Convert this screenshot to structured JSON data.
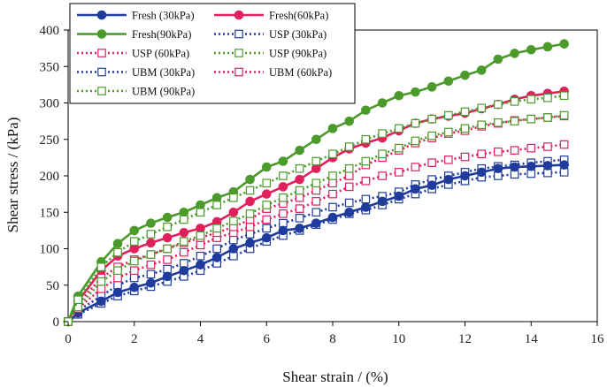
{
  "chart_data": {
    "type": "line",
    "title": "",
    "xlabel": "Shear strain / (%)",
    "ylabel": "Shear stress / (kPa)",
    "xlim": [
      0,
      16
    ],
    "ylim": [
      0,
      400
    ],
    "xticks": [
      0,
      2,
      4,
      6,
      8,
      10,
      12,
      14,
      16
    ],
    "yticks": [
      0,
      50,
      100,
      150,
      200,
      250,
      300,
      350,
      400
    ],
    "grid": false,
    "legend_position": "top-left",
    "series": [
      {
        "name": "Fresh (30kPa)",
        "color": "#1f3b9c",
        "marker": "filled-circle",
        "line": "solid",
        "x": [
          0,
          0.3,
          1,
          1.5,
          2,
          2.5,
          3,
          3.5,
          4,
          4.5,
          5,
          5.5,
          6,
          6.5,
          7,
          7.5,
          8,
          8.5,
          9,
          9.5,
          10,
          10.5,
          11,
          11.5,
          12,
          12.5,
          13,
          13.5,
          14,
          14.5,
          15
        ],
        "y": [
          0,
          12,
          28,
          40,
          47,
          53,
          62,
          70,
          78,
          88,
          100,
          108,
          115,
          125,
          128,
          135,
          143,
          150,
          157,
          165,
          172,
          182,
          187,
          195,
          200,
          205,
          210,
          212,
          213,
          214,
          215
        ]
      },
      {
        "name": "Fresh(60kPa)",
        "color": "#e0205a",
        "marker": "filled-circle",
        "line": "solid",
        "x": [
          0,
          0.3,
          1,
          1.5,
          2,
          2.5,
          3,
          3.5,
          4,
          4.5,
          5,
          5.5,
          6,
          6.5,
          7,
          7.5,
          8,
          8.5,
          9,
          9.5,
          10,
          10.5,
          11,
          11.5,
          12,
          12.5,
          13,
          13.5,
          14,
          14.5,
          15
        ],
        "y": [
          0,
          28,
          70,
          90,
          100,
          108,
          115,
          122,
          128,
          137,
          150,
          165,
          175,
          185,
          195,
          210,
          225,
          237,
          245,
          252,
          262,
          272,
          278,
          282,
          286,
          292,
          298,
          305,
          310,
          313,
          316
        ]
      },
      {
        "name": "Fresh(90kPa)",
        "color": "#4b9a2b",
        "marker": "filled-circle",
        "line": "solid",
        "x": [
          0,
          0.3,
          1,
          1.5,
          2,
          2.5,
          3,
          3.5,
          4,
          4.5,
          5,
          5.5,
          6,
          6.5,
          7,
          7.5,
          8,
          8.5,
          9,
          9.5,
          10,
          10.5,
          11,
          11.5,
          12,
          12.5,
          13,
          13.5,
          14,
          14.5,
          15
        ],
        "y": [
          0,
          35,
          82,
          107,
          125,
          135,
          143,
          150,
          160,
          170,
          178,
          195,
          212,
          220,
          235,
          250,
          265,
          275,
          290,
          300,
          310,
          315,
          322,
          330,
          338,
          345,
          360,
          368,
          373,
          377,
          381
        ]
      },
      {
        "name": "USP (30kPa)",
        "color": "#1f3b9c",
        "marker": "open-square",
        "line": "dotted",
        "x": [
          0,
          0.3,
          1,
          1.5,
          2,
          2.5,
          3,
          3.5,
          4,
          4.5,
          5,
          5.5,
          6,
          6.5,
          7,
          7.5,
          8,
          8.5,
          9,
          9.5,
          10,
          10.5,
          11,
          11.5,
          12,
          12.5,
          13,
          13.5,
          14,
          14.5,
          15
        ],
        "y": [
          0,
          15,
          35,
          50,
          60,
          65,
          72,
          80,
          90,
          100,
          112,
          120,
          128,
          135,
          142,
          150,
          157,
          163,
          168,
          172,
          178,
          188,
          195,
          200,
          205,
          210,
          213,
          215,
          218,
          220,
          222
        ]
      },
      {
        "name": "USP (60kPa)",
        "color": "#e0205a",
        "marker": "open-square",
        "line": "dotted",
        "x": [
          0,
          0.3,
          1,
          1.5,
          2,
          2.5,
          3,
          3.5,
          4,
          4.5,
          5,
          5.5,
          6,
          6.5,
          7,
          7.5,
          8,
          8.5,
          9,
          9.5,
          10,
          10.5,
          11,
          11.5,
          12,
          12.5,
          13,
          13.5,
          14,
          14.5,
          15
        ],
        "y": [
          0,
          18,
          45,
          60,
          70,
          78,
          85,
          95,
          105,
          115,
          122,
          130,
          140,
          148,
          155,
          165,
          175,
          185,
          193,
          200,
          205,
          212,
          218,
          222,
          226,
          230,
          233,
          235,
          238,
          240,
          243
        ]
      },
      {
        "name": "USP (90kPa)",
        "color": "#4b9a2b",
        "marker": "open-square",
        "line": "dotted",
        "x": [
          0,
          0.3,
          1,
          1.5,
          2,
          2.5,
          3,
          3.5,
          4,
          4.5,
          5,
          5.5,
          6,
          6.5,
          7,
          7.5,
          8,
          8.5,
          9,
          9.5,
          10,
          10.5,
          11,
          11.5,
          12,
          12.5,
          13,
          13.5,
          14,
          14.5,
          15
        ],
        "y": [
          0,
          20,
          55,
          70,
          83,
          92,
          100,
          110,
          118,
          128,
          138,
          148,
          160,
          170,
          180,
          190,
          200,
          210,
          220,
          230,
          238,
          248,
          255,
          260,
          265,
          270,
          273,
          275,
          278,
          280,
          283
        ]
      },
      {
        "name": "UBM (30kPa)",
        "color": "#1f3b9c",
        "marker": "open-square",
        "line": "dotted",
        "x": [
          0,
          0.3,
          1,
          1.5,
          2,
          2.5,
          3,
          3.5,
          4,
          4.5,
          5,
          5.5,
          6,
          6.5,
          7,
          7.5,
          8,
          8.5,
          9,
          9.5,
          10,
          10.5,
          11,
          11.5,
          12,
          12.5,
          13,
          13.5,
          14,
          14.5,
          15
        ],
        "y": [
          0,
          10,
          25,
          35,
          42,
          48,
          55,
          62,
          70,
          80,
          90,
          100,
          110,
          118,
          125,
          133,
          140,
          148,
          153,
          160,
          168,
          175,
          182,
          188,
          193,
          198,
          200,
          202,
          203,
          204,
          205
        ]
      },
      {
        "name": "UBM (60kPa)",
        "color": "#e0205a",
        "marker": "open-square",
        "line": "dotted",
        "x": [
          0,
          0.3,
          1,
          1.5,
          2,
          2.5,
          3,
          3.5,
          4,
          4.5,
          5,
          5.5,
          6,
          6.5,
          7,
          7.5,
          8,
          8.5,
          9,
          9.5,
          10,
          10.5,
          11,
          11.5,
          12,
          12.5,
          13,
          13.5,
          14,
          14.5,
          15
        ],
        "y": [
          0,
          25,
          60,
          75,
          85,
          92,
          100,
          108,
          115,
          122,
          130,
          140,
          155,
          162,
          170,
          180,
          190,
          200,
          215,
          225,
          235,
          245,
          252,
          258,
          262,
          268,
          272,
          276,
          278,
          280,
          282
        ]
      },
      {
        "name": "UBM (90kPa)",
        "color": "#4b9a2b",
        "marker": "open-square",
        "line": "dotted",
        "x": [
          0,
          0.3,
          1,
          1.5,
          2,
          2.5,
          3,
          3.5,
          4,
          4.5,
          5,
          5.5,
          6,
          6.5,
          7,
          7.5,
          8,
          8.5,
          9,
          9.5,
          10,
          10.5,
          11,
          11.5,
          12,
          12.5,
          13,
          13.5,
          14,
          14.5,
          15
        ],
        "y": [
          0,
          30,
          75,
          95,
          110,
          120,
          130,
          140,
          150,
          160,
          170,
          180,
          190,
          200,
          210,
          220,
          230,
          240,
          250,
          258,
          265,
          272,
          278,
          283,
          288,
          293,
          298,
          302,
          305,
          307,
          310
        ]
      }
    ]
  }
}
